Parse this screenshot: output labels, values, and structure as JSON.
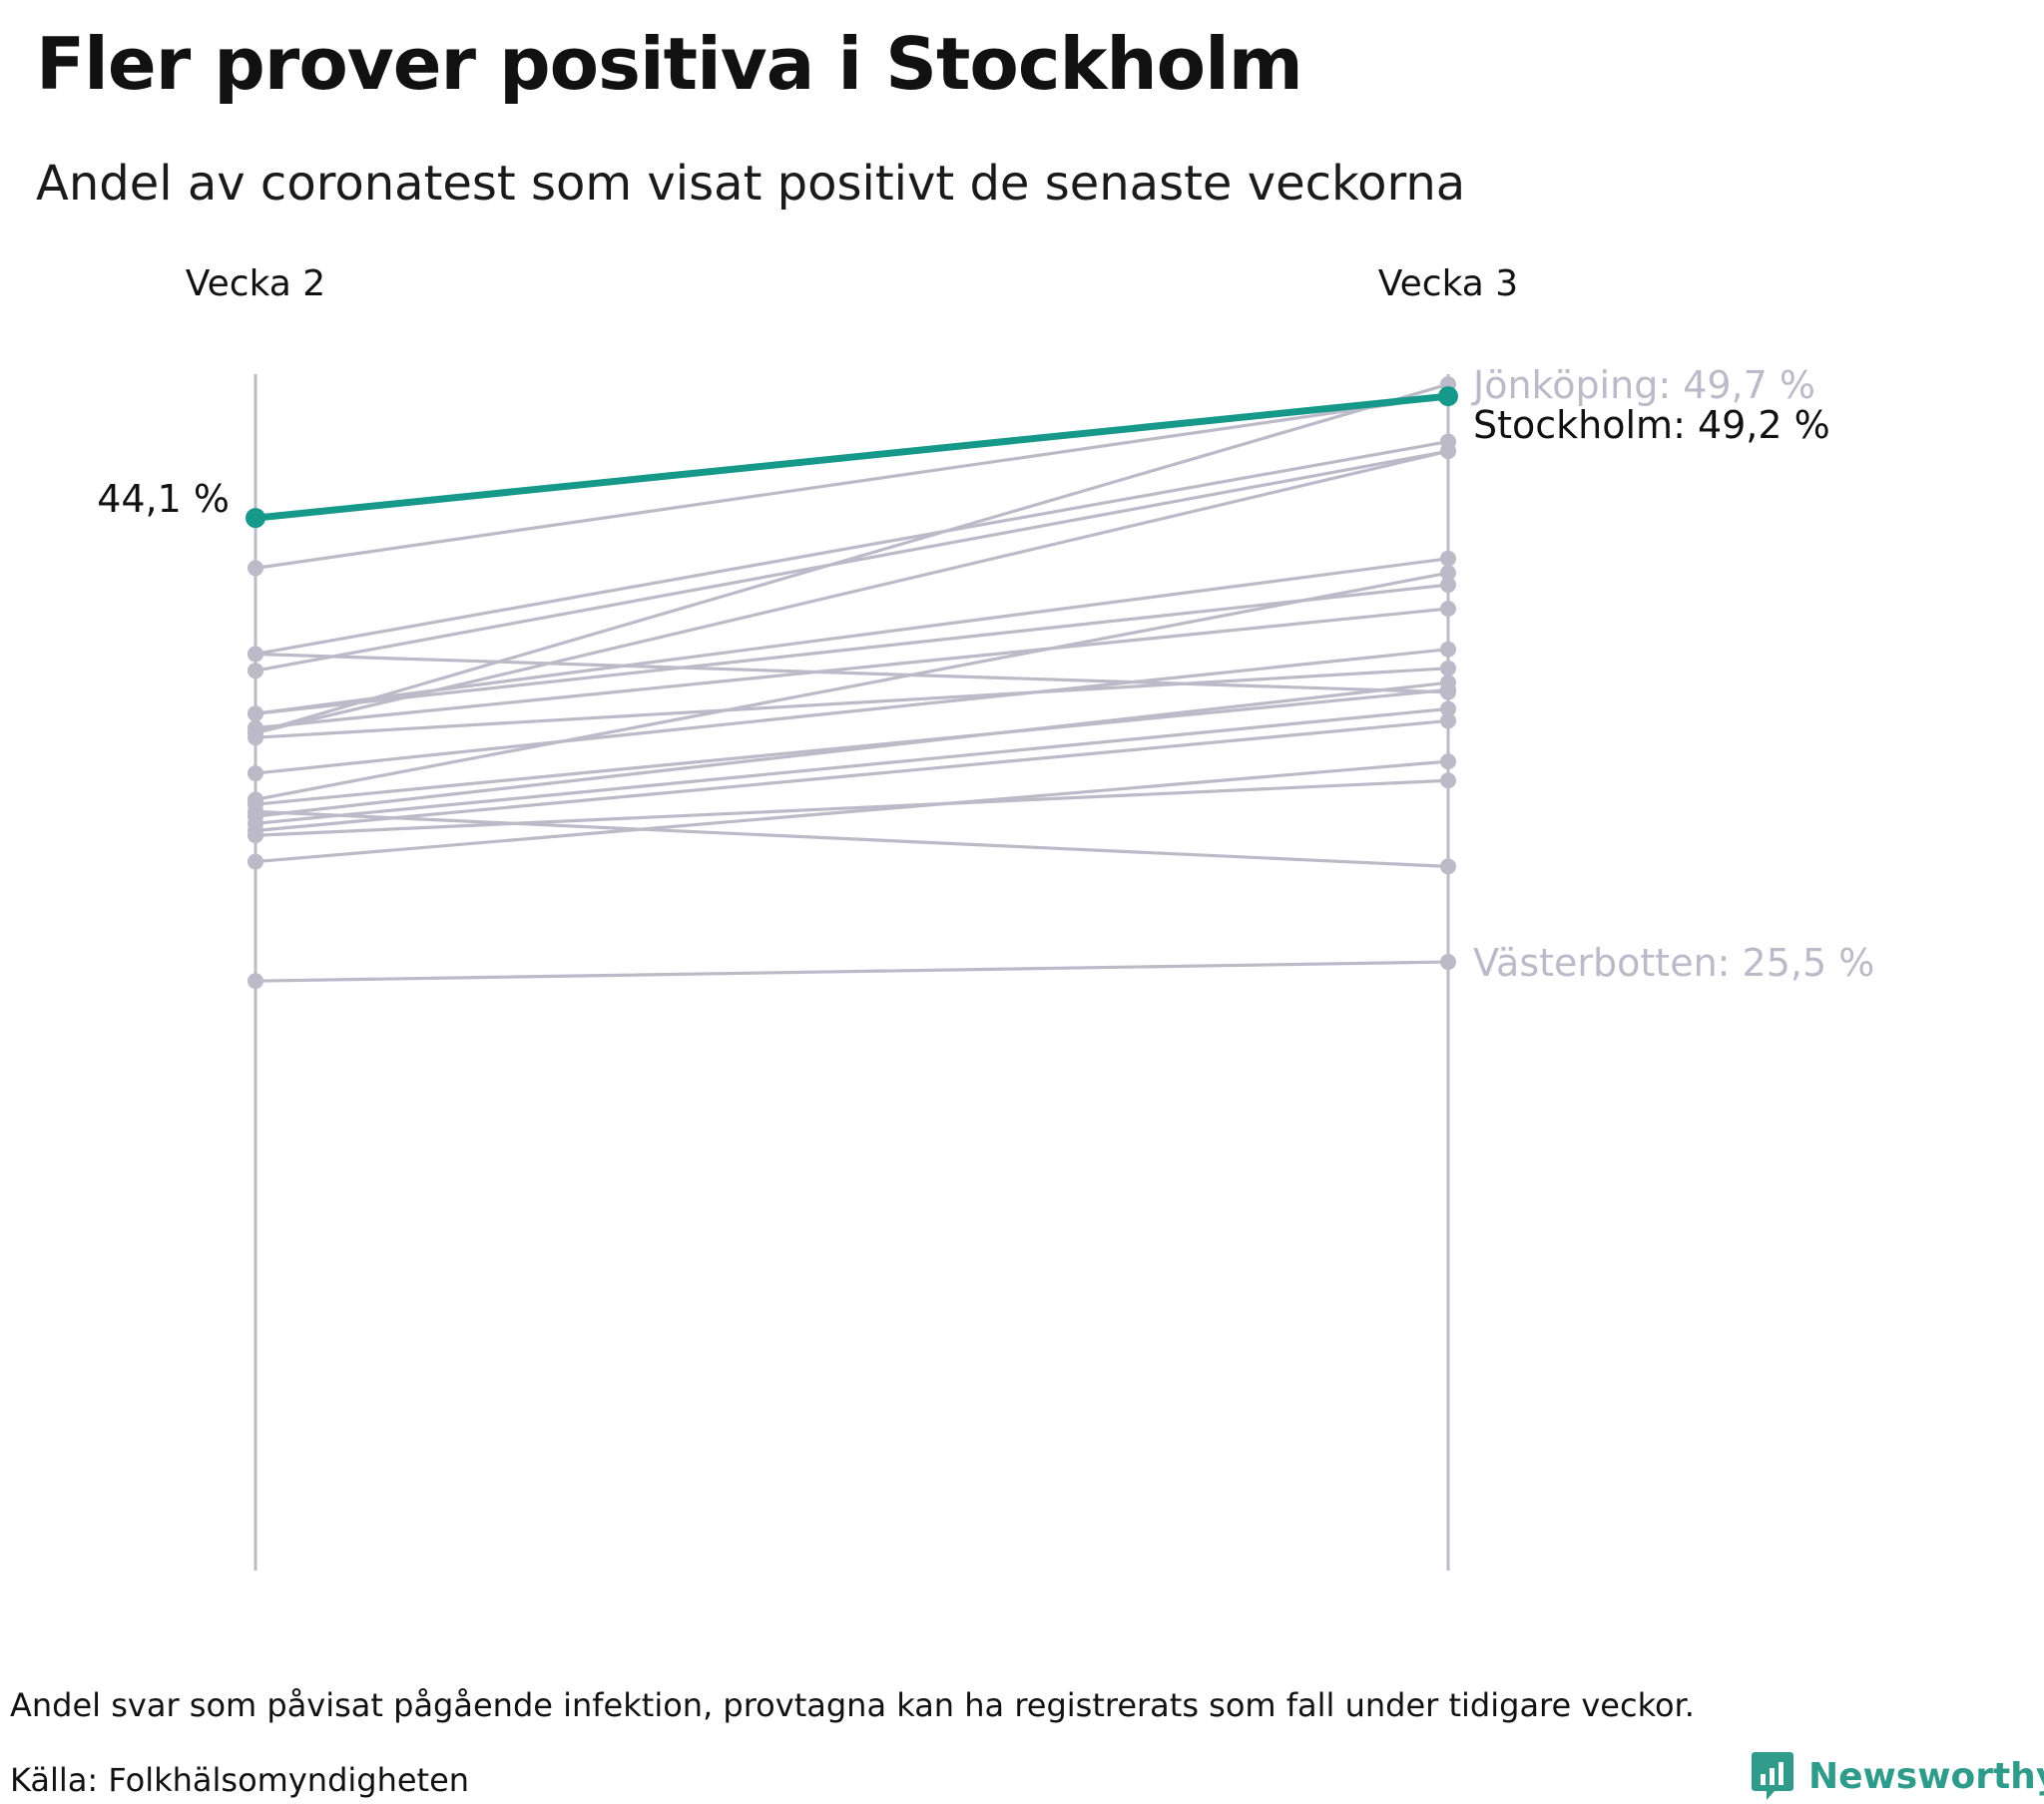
{
  "title": "Fler prover positiva i Stockholm",
  "subtitle": "Andel av coronatest som visat positivt de senaste veckorna",
  "footnote": "Andel svar som påvisat pågående infektion, provtagna kan ha registrerats som fall under tidigare veckor.",
  "source": "Källa: Folkhälsomyndigheten",
  "brand": "Newsworthy",
  "colors": {
    "highlight": "#16998a",
    "other": "#bcbac8",
    "brand": "#2f9c8b"
  },
  "chart_data": {
    "type": "line",
    "categories": [
      "Vecka 2",
      "Vecka 3"
    ],
    "highlight": "Stockholm",
    "ylim": [
      0,
      50
    ],
    "grid": false,
    "labels": {
      "start_value": "44,1 %",
      "jonkoping": "Jönköping: 49,7 %",
      "stockholm": "Stockholm: 49,2 %",
      "vasterbotten": "Västerbotten: 25,5 %"
    },
    "series": [
      {
        "name": "Stockholm",
        "values": [
          44.1,
          49.2
        ]
      },
      {
        "name": "Jönköping",
        "values": [
          35.1,
          49.7
        ]
      },
      {
        "name": "",
        "values": [
          42.0,
          49.2
        ]
      },
      {
        "name": "",
        "values": [
          38.4,
          47.3
        ]
      },
      {
        "name": "",
        "values": [
          37.7,
          46.9
        ]
      },
      {
        "name": "",
        "values": [
          38.4,
          36.8
        ]
      },
      {
        "name": "",
        "values": [
          35.1,
          46.9
        ]
      },
      {
        "name": "",
        "values": [
          35.9,
          42.4
        ]
      },
      {
        "name": "",
        "values": [
          35.9,
          41.3
        ]
      },
      {
        "name": "",
        "values": [
          32.3,
          41.8
        ]
      },
      {
        "name": "",
        "values": [
          35.3,
          40.3
        ]
      },
      {
        "name": "",
        "values": [
          33.4,
          38.6
        ]
      },
      {
        "name": "",
        "values": [
          34.9,
          37.8
        ]
      },
      {
        "name": "",
        "values": [
          32.1,
          36.9
        ]
      },
      {
        "name": "",
        "values": [
          31.6,
          37.2
        ]
      },
      {
        "name": "",
        "values": [
          31.3,
          36.1
        ]
      },
      {
        "name": "",
        "values": [
          31.0,
          35.6
        ]
      },
      {
        "name": "",
        "values": [
          29.7,
          33.9
        ]
      },
      {
        "name": "",
        "values": [
          31.8,
          29.5
        ]
      },
      {
        "name": "",
        "values": [
          30.8,
          33.1
        ]
      },
      {
        "name": "Västerbotten",
        "values": [
          24.7,
          25.5
        ]
      }
    ]
  }
}
